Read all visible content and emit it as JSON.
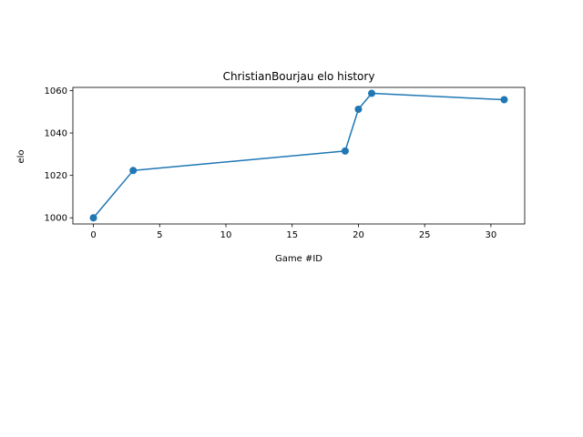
{
  "chart_data": {
    "type": "line",
    "title": "ChristianBourjau elo history",
    "xlabel": "Game #ID",
    "ylabel": "elo",
    "xlim": [
      -1.55,
      32.55
    ],
    "ylim": [
      997.1,
      1061.5
    ],
    "xticks": [
      0,
      5,
      10,
      15,
      20,
      25,
      30
    ],
    "yticks": [
      1000,
      1020,
      1040,
      1060
    ],
    "grid": false,
    "legend": "none",
    "series": [
      {
        "color": "#1f77b4",
        "marker": "circle",
        "x": [
          0,
          3,
          19,
          20,
          21,
          31
        ],
        "y": [
          1000,
          1022.3,
          1031.5,
          1051.2,
          1058.7,
          1055.7
        ]
      }
    ]
  }
}
